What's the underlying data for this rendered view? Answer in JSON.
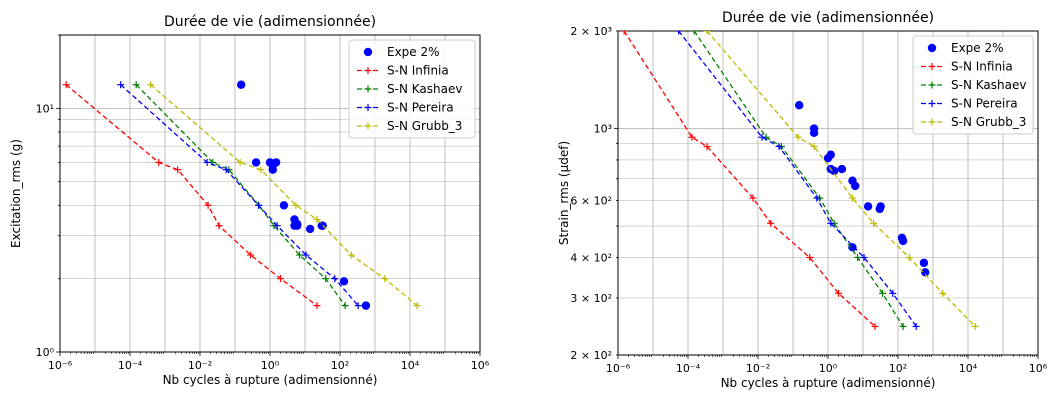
{
  "chart_data": [
    {
      "type": "scatter",
      "title": "Durée de vie (adimensionnée)",
      "xlabel": "Nb cycles à rupture (adimensionné)",
      "ylabel": "Excitation_rms (g)",
      "xscale": "log",
      "yscale": "log",
      "xlim": [
        1e-06,
        1000000.0
      ],
      "ylim": [
        1,
        20
      ],
      "grid": true,
      "legend": "top-right",
      "xticks": [
        {
          "value": 1e-06,
          "label": "10⁻⁶"
        },
        {
          "value": 0.0001,
          "label": "10⁻⁴"
        },
        {
          "value": 0.01,
          "label": "10⁻²"
        },
        {
          "value": 1,
          "label": "10⁰"
        },
        {
          "value": 100.0,
          "label": "10²"
        },
        {
          "value": 10000.0,
          "label": "10⁴"
        },
        {
          "value": 1000000.0,
          "label": "10⁶"
        }
      ],
      "yticks": [
        {
          "value": 1,
          "label": "10⁰"
        },
        {
          "value": 10,
          "label": "10¹"
        }
      ],
      "series": [
        {
          "name": "Expe 2%",
          "kind": "points",
          "color": "#0000ff",
          "x": [
            0.15,
            0.4,
            1.0,
            1.2,
            1.5,
            1.2,
            2.5,
            5,
            6,
            6,
            5,
            14,
            30,
            32,
            130,
            550
          ],
          "y": [
            12.5,
            6.0,
            6.0,
            5.8,
            6.0,
            5.6,
            4.0,
            3.5,
            3.35,
            3.3,
            3.3,
            3.2,
            3.3,
            3.3,
            1.95,
            1.55
          ]
        },
        {
          "name": "S-N Infinia",
          "kind": "line",
          "color": "#ff0000",
          "x": [
            1.5e-06,
            0.00066,
            0.0023,
            0.017,
            0.035,
            0.28,
            2.0,
            22
          ],
          "y": [
            12.5,
            6.0,
            5.6,
            4.0,
            3.3,
            2.5,
            2.0,
            1.55
          ]
        },
        {
          "name": "S-N Kashaev",
          "kind": "line",
          "color": "#008000",
          "x": [
            0.00015,
            0.023,
            0.067,
            0.48,
            1.3,
            7.0,
            39,
            140
          ],
          "y": [
            12.5,
            6.0,
            5.6,
            4.0,
            3.3,
            2.5,
            2.0,
            1.55
          ]
        },
        {
          "name": "S-N Pereira",
          "kind": "line",
          "color": "#0000ff",
          "x": [
            5.4e-05,
            0.016,
            0.056,
            0.47,
            1.6,
            10.7,
            71,
            330
          ],
          "y": [
            12.5,
            6.0,
            5.6,
            4.0,
            3.3,
            2.5,
            2.0,
            1.55
          ]
        },
        {
          "name": "S-N Grubb_3",
          "kind": "line",
          "color": "#bbbb00",
          "x": [
            0.00039,
            0.14,
            0.55,
            5.5,
            22,
            210,
            1900,
            16000
          ],
          "y": [
            12.5,
            6.0,
            5.6,
            4.0,
            3.5,
            2.5,
            2.0,
            1.55
          ]
        }
      ]
    },
    {
      "type": "scatter",
      "title": "Durée de vie (adimensionnée)",
      "xlabel": "Nb cycles à rupture (adimensionné)",
      "ylabel": "Strain_rms (μdef)",
      "xscale": "log",
      "yscale": "log",
      "xlim": [
        1e-06,
        1000000.0
      ],
      "ylim": [
        200,
        2000
      ],
      "grid": true,
      "legend": "top-right",
      "xticks": [
        {
          "value": 1e-06,
          "label": "10⁻⁶"
        },
        {
          "value": 0.0001,
          "label": "10⁻⁴"
        },
        {
          "value": 0.01,
          "label": "10⁻²"
        },
        {
          "value": 1,
          "label": "10⁰"
        },
        {
          "value": 100.0,
          "label": "10²"
        },
        {
          "value": 10000.0,
          "label": "10⁴"
        },
        {
          "value": 1000000.0,
          "label": "10⁶"
        }
      ],
      "yticks": [
        {
          "value": 200,
          "label": "2 × 10²"
        },
        {
          "value": 300,
          "label": "3 × 10²"
        },
        {
          "value": 400,
          "label": "4 × 10²"
        },
        {
          "value": 600,
          "label": "6 × 10²"
        },
        {
          "value": 1000,
          "label": "10³"
        },
        {
          "value": 2000,
          "label": "2 × 10³"
        }
      ],
      "series": [
        {
          "name": "Expe 2%",
          "kind": "points",
          "color": "#0000ff",
          "x": [
            0.15,
            0.4,
            0.4,
            1.0,
            1.2,
            1.2,
            1.5,
            2.5,
            5,
            6,
            5,
            14,
            30,
            32,
            130,
            140,
            550,
            600
          ],
          "y": [
            1180,
            1000,
            970,
            810,
            830,
            750,
            740,
            750,
            690,
            665,
            430,
            575,
            565,
            575,
            460,
            450,
            385,
            360
          ]
        },
        {
          "name": "S-N Infinia",
          "kind": "line",
          "color": "#ff0000",
          "x": [
            1.5e-06,
            0.00013,
            0.00035,
            0.0072,
            0.023,
            0.3,
            2.0,
            22
          ],
          "y": [
            2000,
            940,
            880,
            610,
            510,
            400,
            310,
            245
          ]
        },
        {
          "name": "S-N Kashaev",
          "kind": "line",
          "color": "#008000",
          "x": [
            0.00015,
            0.017,
            0.047,
            0.58,
            1.5,
            7.0,
            36,
            140
          ],
          "y": [
            2000,
            940,
            880,
            610,
            510,
            400,
            310,
            245
          ]
        },
        {
          "name": "S-N Pereira",
          "kind": "line",
          "color": "#0000ff",
          "x": [
            5.4e-05,
            0.013,
            0.04,
            0.48,
            1.2,
            10.7,
            71,
            330
          ],
          "y": [
            2000,
            940,
            880,
            610,
            510,
            400,
            310,
            245
          ]
        },
        {
          "name": "S-N Grubb_3",
          "kind": "line",
          "color": "#bbbb00",
          "x": [
            0.00035,
            0.14,
            0.4,
            5.0,
            20,
            210,
            1900,
            16000
          ],
          "y": [
            2000,
            940,
            880,
            610,
            510,
            400,
            310,
            245
          ]
        }
      ]
    }
  ]
}
